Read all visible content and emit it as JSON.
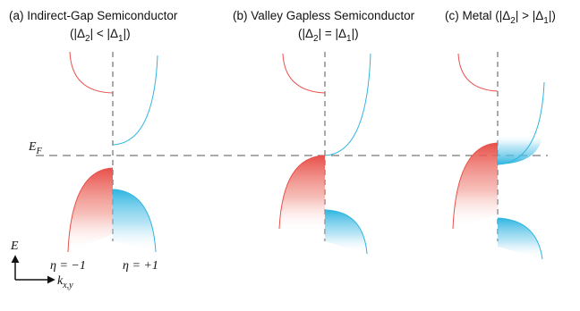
{
  "panels": [
    {
      "title": "(a) Indirect-Gap Semiconductor",
      "condition": {
        "left": "(|Δ",
        "mid": "| < |Δ",
        "right": "|)",
        "sub_a": "2",
        "sub_b": "1"
      }
    },
    {
      "title": "(b) Valley Gapless Semiconductor",
      "condition": {
        "left": "(|Δ",
        "mid": "| = |Δ",
        "right": "|)",
        "sub_a": "2",
        "sub_b": "1"
      }
    },
    {
      "title": "(c) Metal",
      "condition": {
        "left": " (|Δ",
        "mid": "| > |Δ",
        "right": "|)",
        "sub_a": "2",
        "sub_b": "1"
      }
    }
  ],
  "fermi": {
    "main": "E",
    "sub": "F"
  },
  "axes": {
    "y_main": "E",
    "x_main": "k",
    "x_sub": "x,y"
  },
  "valleys": {
    "left": "η = −1",
    "right": "η = +1"
  },
  "colors": {
    "valley_minus": "#e8504a",
    "valley_plus": "#2fb5e0",
    "dashed": "#555555",
    "text": "#111111"
  }
}
